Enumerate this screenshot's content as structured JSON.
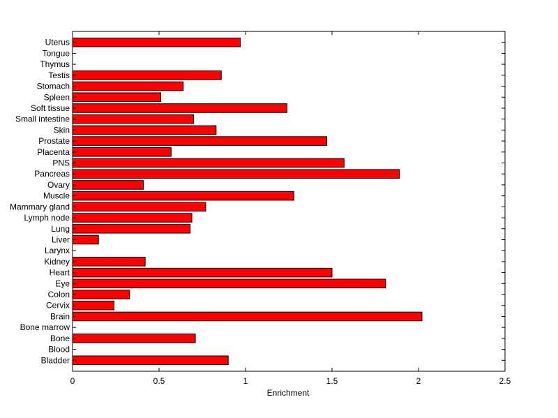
{
  "chart_data": {
    "type": "bar",
    "orientation": "horizontal",
    "title": "",
    "xlabel": "Enrichment",
    "ylabel": "",
    "xlim": [
      0,
      2.5
    ],
    "xticks": [
      "0",
      "0.5",
      "1",
      "1.5",
      "2",
      "2.5"
    ],
    "grid": false,
    "legend": "none",
    "bar_color": "#ff0000",
    "bar_edge_color": "#000000",
    "categories": [
      "Bladder",
      "Blood",
      "Bone",
      "Bone marrow",
      "Brain",
      "Cervix",
      "Colon",
      "Eye",
      "Heart",
      "Kidney",
      "Larynx",
      "Liver",
      "Lung",
      "Lymph node",
      "Mammary gland",
      "Muscle",
      "Ovary",
      "Pancreas",
      "PNS",
      "Placenta",
      "Prostate",
      "Skin",
      "Small intestine",
      "Soft tissue",
      "Spleen",
      "Stomach",
      "Testis",
      "Thymus",
      "Tongue",
      "Uterus"
    ],
    "values": [
      0.9,
      0,
      0.71,
      0,
      2.02,
      0.24,
      0.33,
      1.81,
      1.5,
      0.42,
      0,
      0.15,
      0.68,
      0.69,
      0.77,
      1.28,
      0.41,
      1.89,
      1.57,
      0.57,
      1.47,
      0.83,
      0.7,
      1.24,
      0.51,
      0.64,
      0.86,
      0,
      0,
      0.97
    ]
  }
}
